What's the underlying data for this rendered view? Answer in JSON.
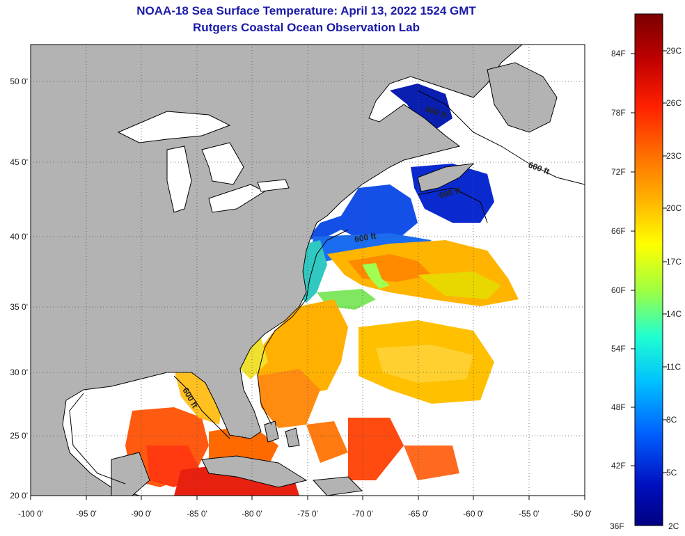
{
  "header": {
    "title": "NOAA-18 Sea Surface Temperature:  April 13, 2022 1524 GMT",
    "subtitle": "Rutgers Coastal Ocean Observation Lab"
  },
  "map": {
    "lon_range": [
      -100,
      -50
    ],
    "lat_range": [
      20,
      52
    ],
    "lon_labels": [
      "-100 0'",
      "-95 0'",
      "-90 0'",
      "-85 0'",
      "-80 0'",
      "-75 0'",
      "-70 0'",
      "-65 0'",
      "-60 0'",
      "-55 0'",
      "-50 0'"
    ],
    "lat_labels": [
      "50 0'",
      "45 0'",
      "40 0'",
      "35 0'",
      "30 0'",
      "25 0'",
      "20 0'"
    ],
    "contour_label": "600 ft",
    "colors": {
      "land": "#b3b3b3",
      "cloud": "#ffffff"
    }
  },
  "colorbar": {
    "f_labels": [
      "84F",
      "78F",
      "72F",
      "66F",
      "60F",
      "54F",
      "48F",
      "42F",
      "36F"
    ],
    "c_labels": [
      "29C",
      "26C",
      "23C",
      "20C",
      "17C",
      "14C",
      "11C",
      "8C",
      "5C",
      "2C"
    ],
    "gradient": [
      "#7a0000",
      "#c00000",
      "#ff2000",
      "#ff6a00",
      "#ffb000",
      "#ffff00",
      "#a0ff40",
      "#20ffd0",
      "#00c0ff",
      "#0060ff",
      "#0010c0",
      "#000080"
    ]
  }
}
